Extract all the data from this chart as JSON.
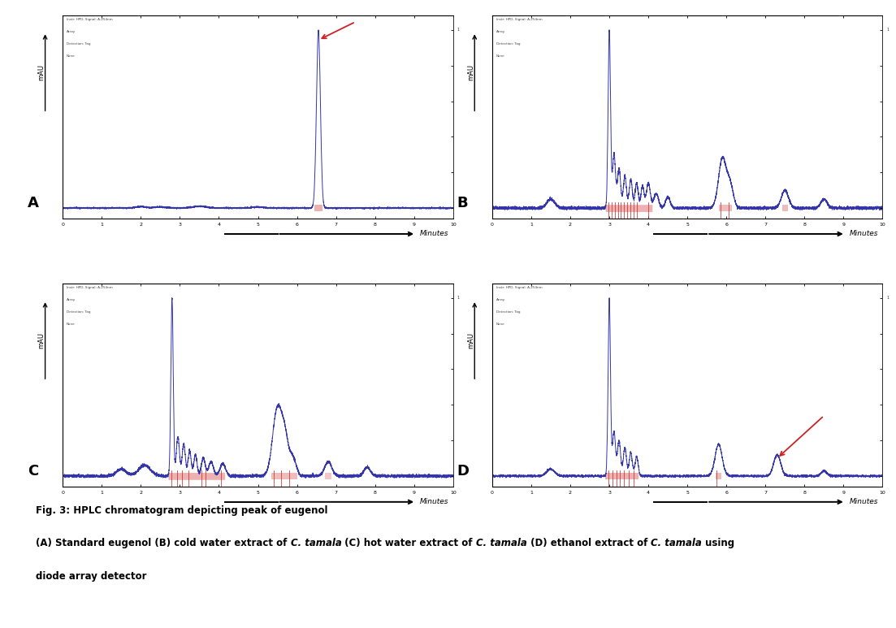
{
  "fig_title_line1": "Fig. 3: HPLC chromatogram depicting peak of eugenol",
  "fig_title_line3": "diode array detector",
  "panel_labels": [
    "A",
    "B",
    "C",
    "D"
  ],
  "xlabel": "Minutes",
  "ylabel": "mAU",
  "bg_color": "#ffffff",
  "plot_bg": "#ffffff",
  "blue_color": "#3535aa",
  "red_color": "#cc2222",
  "border_color": "#888888",
  "info_lines_A": [
    "Instr: HPD, Signal: A,254nm",
    "Array",
    "Detection: Tag",
    "None"
  ],
  "info_lines_B": [
    "Instr: HPD, Signal: A,254nm",
    "Array",
    "Detection: Tag",
    "None"
  ],
  "info_lines_C": [
    "Instr: HPD, Signal: A,254nm",
    "Array",
    "Detection: Tag",
    "None"
  ],
  "info_lines_D": [
    "Instr: HPD, Signal: A,254nm",
    "Array",
    "Detection: Tag",
    "None"
  ]
}
